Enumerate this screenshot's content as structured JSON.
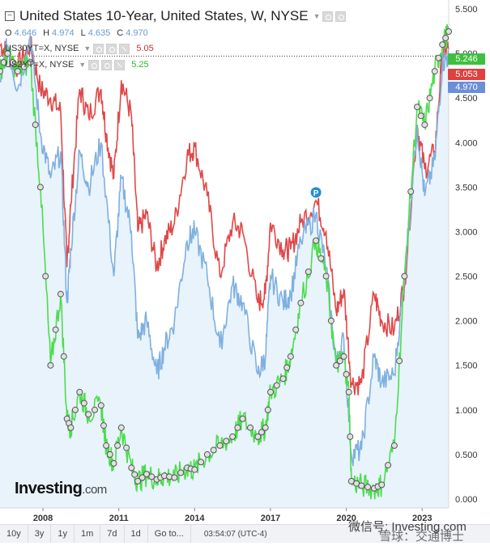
{
  "legend": {
    "title": "United States 10-Year, United States, W, NYSE",
    "ohlc": [
      {
        "label": "O",
        "value": "4.646"
      },
      {
        "label": "H",
        "value": "4.974"
      },
      {
        "label": "L",
        "value": "4.635"
      },
      {
        "label": "C",
        "value": "4.970"
      }
    ],
    "series": [
      {
        "name": "US30YT=X, NYSE",
        "value": "5.05",
        "color": "#c0392b"
      },
      {
        "name": "US2YT=X, NYSE",
        "value": "5.25",
        "color": "#2eb82e"
      }
    ]
  },
  "price_tags": [
    {
      "value": "5.246",
      "color": "#3fbf3f"
    },
    {
      "value": "5.053",
      "color": "#e04040"
    },
    {
      "value": "4.970",
      "color": "#6a8fd8"
    }
  ],
  "marker_label": "P",
  "logo": {
    "main": "Investing",
    "suffix": ".com"
  },
  "toolbar": {
    "buttons": [
      "10y",
      "3y",
      "1y",
      "1m",
      "7d",
      "1d",
      "Go to..."
    ],
    "time": "03:54:07 (UTC-4)"
  },
  "watermark": [
    "微信号: Investing.com",
    "雪球：交通博士"
  ],
  "colors": {
    "us10y": "#7fb0e0",
    "us30y": "#e04848",
    "us2y": "#4ddc4d",
    "area": "#e8f3fb"
  },
  "chart_data": {
    "type": "line",
    "xlim": [
      2006.3,
      2024.05
    ],
    "ylim": [
      -0.1,
      5.6
    ],
    "x_ticks": [
      "2008",
      "2011",
      "2014",
      "2017",
      "2020",
      "2023"
    ],
    "x_tick_values": [
      2008,
      2011,
      2014,
      2017,
      2020,
      2023
    ],
    "y_ticks": [
      "0.000",
      "0.500",
      "1.000",
      "1.500",
      "2.000",
      "2.500",
      "3.000",
      "3.500",
      "4.000",
      "4.500",
      "5.000",
      "5.500"
    ],
    "y_tick_values": [
      0,
      0.5,
      1,
      1.5,
      2,
      2.5,
      3,
      3.5,
      4,
      4.5,
      5,
      5.5
    ],
    "reference_line": 4.97,
    "series": [
      {
        "name": "US30YT=X, NYSE",
        "color": "#e04848",
        "points": [
          [
            2006.3,
            5.1
          ],
          [
            2006.6,
            5.0
          ],
          [
            2007.0,
            4.85
          ],
          [
            2007.5,
            5.1
          ],
          [
            2007.9,
            4.6
          ],
          [
            2008.3,
            4.5
          ],
          [
            2008.7,
            4.35
          ],
          [
            2008.95,
            2.6
          ],
          [
            2009.1,
            3.3
          ],
          [
            2009.45,
            4.6
          ],
          [
            2009.8,
            4.3
          ],
          [
            2010.3,
            4.6
          ],
          [
            2010.5,
            4.1
          ],
          [
            2010.8,
            3.6
          ],
          [
            2011.1,
            4.7
          ],
          [
            2011.5,
            4.3
          ],
          [
            2011.75,
            3.0
          ],
          [
            2012.1,
            3.2
          ],
          [
            2012.5,
            2.6
          ],
          [
            2012.8,
            2.9
          ],
          [
            2013.2,
            3.1
          ],
          [
            2013.7,
            3.85
          ],
          [
            2014.0,
            3.95
          ],
          [
            2014.5,
            3.4
          ],
          [
            2015.0,
            2.5
          ],
          [
            2015.5,
            3.1
          ],
          [
            2015.9,
            3.0
          ],
          [
            2016.5,
            2.2
          ],
          [
            2016.8,
            2.3
          ],
          [
            2017.0,
            3.1
          ],
          [
            2017.5,
            2.8
          ],
          [
            2017.8,
            2.8
          ],
          [
            2018.2,
            3.1
          ],
          [
            2018.8,
            3.35
          ],
          [
            2019.2,
            3.0
          ],
          [
            2019.6,
            2.1
          ],
          [
            2019.9,
            2.35
          ],
          [
            2020.2,
            1.3
          ],
          [
            2020.6,
            1.3
          ],
          [
            2021.1,
            2.3
          ],
          [
            2021.4,
            2.0
          ],
          [
            2021.9,
            1.9
          ],
          [
            2022.3,
            2.4
          ],
          [
            2022.8,
            4.2
          ],
          [
            2023.1,
            3.7
          ],
          [
            2023.5,
            3.9
          ],
          [
            2023.8,
            5.0
          ],
          [
            2024.05,
            5.053
          ]
        ]
      },
      {
        "name": "United States 10-Year",
        "color": "#7fb0e0",
        "points": [
          [
            2006.3,
            4.7
          ],
          [
            2006.6,
            5.1
          ],
          [
            2007.0,
            4.6
          ],
          [
            2007.5,
            5.2
          ],
          [
            2007.9,
            4.1
          ],
          [
            2008.3,
            3.6
          ],
          [
            2008.7,
            3.9
          ],
          [
            2008.95,
            2.2
          ],
          [
            2009.1,
            2.8
          ],
          [
            2009.45,
            3.9
          ],
          [
            2009.8,
            3.5
          ],
          [
            2010.3,
            4.0
          ],
          [
            2010.8,
            2.5
          ],
          [
            2011.1,
            3.6
          ],
          [
            2011.5,
            3.0
          ],
          [
            2011.75,
            1.8
          ],
          [
            2012.1,
            2.0
          ],
          [
            2012.5,
            1.4
          ],
          [
            2012.8,
            1.7
          ],
          [
            2013.2,
            2.0
          ],
          [
            2013.7,
            2.9
          ],
          [
            2014.0,
            3.0
          ],
          [
            2014.5,
            2.5
          ],
          [
            2015.0,
            1.7
          ],
          [
            2015.5,
            2.4
          ],
          [
            2015.9,
            2.2
          ],
          [
            2016.5,
            1.4
          ],
          [
            2016.8,
            1.6
          ],
          [
            2017.0,
            2.5
          ],
          [
            2017.5,
            2.2
          ],
          [
            2017.8,
            2.3
          ],
          [
            2018.2,
            2.9
          ],
          [
            2018.8,
            3.2
          ],
          [
            2019.2,
            2.6
          ],
          [
            2019.6,
            1.5
          ],
          [
            2019.9,
            1.8
          ],
          [
            2020.2,
            0.5
          ],
          [
            2020.6,
            0.55
          ],
          [
            2021.1,
            1.6
          ],
          [
            2021.4,
            1.3
          ],
          [
            2021.9,
            1.4
          ],
          [
            2022.3,
            2.5
          ],
          [
            2022.8,
            4.2
          ],
          [
            2023.1,
            3.4
          ],
          [
            2023.5,
            3.8
          ],
          [
            2023.8,
            4.9
          ],
          [
            2024.05,
            4.97
          ]
        ]
      },
      {
        "name": "US2YT=X, NYSE",
        "color": "#4ddc4d",
        "points": [
          [
            2006.3,
            4.8
          ],
          [
            2006.6,
            5.0
          ],
          [
            2007.0,
            4.8
          ],
          [
            2007.5,
            4.9
          ],
          [
            2007.9,
            3.5
          ],
          [
            2008.3,
            1.5
          ],
          [
            2008.7,
            2.3
          ],
          [
            2008.95,
            0.9
          ],
          [
            2009.1,
            0.8
          ],
          [
            2009.45,
            1.2
          ],
          [
            2009.8,
            0.95
          ],
          [
            2010.3,
            1.05
          ],
          [
            2010.5,
            0.6
          ],
          [
            2010.8,
            0.4
          ],
          [
            2011.1,
            0.8
          ],
          [
            2011.5,
            0.35
          ],
          [
            2011.75,
            0.2
          ],
          [
            2012.1,
            0.28
          ],
          [
            2012.5,
            0.22
          ],
          [
            2012.8,
            0.26
          ],
          [
            2013.2,
            0.24
          ],
          [
            2013.7,
            0.35
          ],
          [
            2014.0,
            0.33
          ],
          [
            2014.5,
            0.5
          ],
          [
            2015.0,
            0.6
          ],
          [
            2015.5,
            0.7
          ],
          [
            2015.9,
            0.9
          ],
          [
            2016.5,
            0.7
          ],
          [
            2016.8,
            0.8
          ],
          [
            2017.0,
            1.2
          ],
          [
            2017.5,
            1.35
          ],
          [
            2017.8,
            1.6
          ],
          [
            2018.2,
            2.2
          ],
          [
            2018.8,
            2.9
          ],
          [
            2019.2,
            2.5
          ],
          [
            2019.6,
            1.5
          ],
          [
            2019.9,
            1.6
          ],
          [
            2020.1,
            1.2
          ],
          [
            2020.2,
            0.2
          ],
          [
            2020.6,
            0.15
          ],
          [
            2021.1,
            0.12
          ],
          [
            2021.4,
            0.16
          ],
          [
            2021.9,
            0.6
          ],
          [
            2022.3,
            2.5
          ],
          [
            2022.8,
            4.4
          ],
          [
            2023.1,
            4.2
          ],
          [
            2023.5,
            4.8
          ],
          [
            2023.8,
            5.1
          ],
          [
            2024.05,
            5.246
          ]
        ]
      }
    ]
  }
}
